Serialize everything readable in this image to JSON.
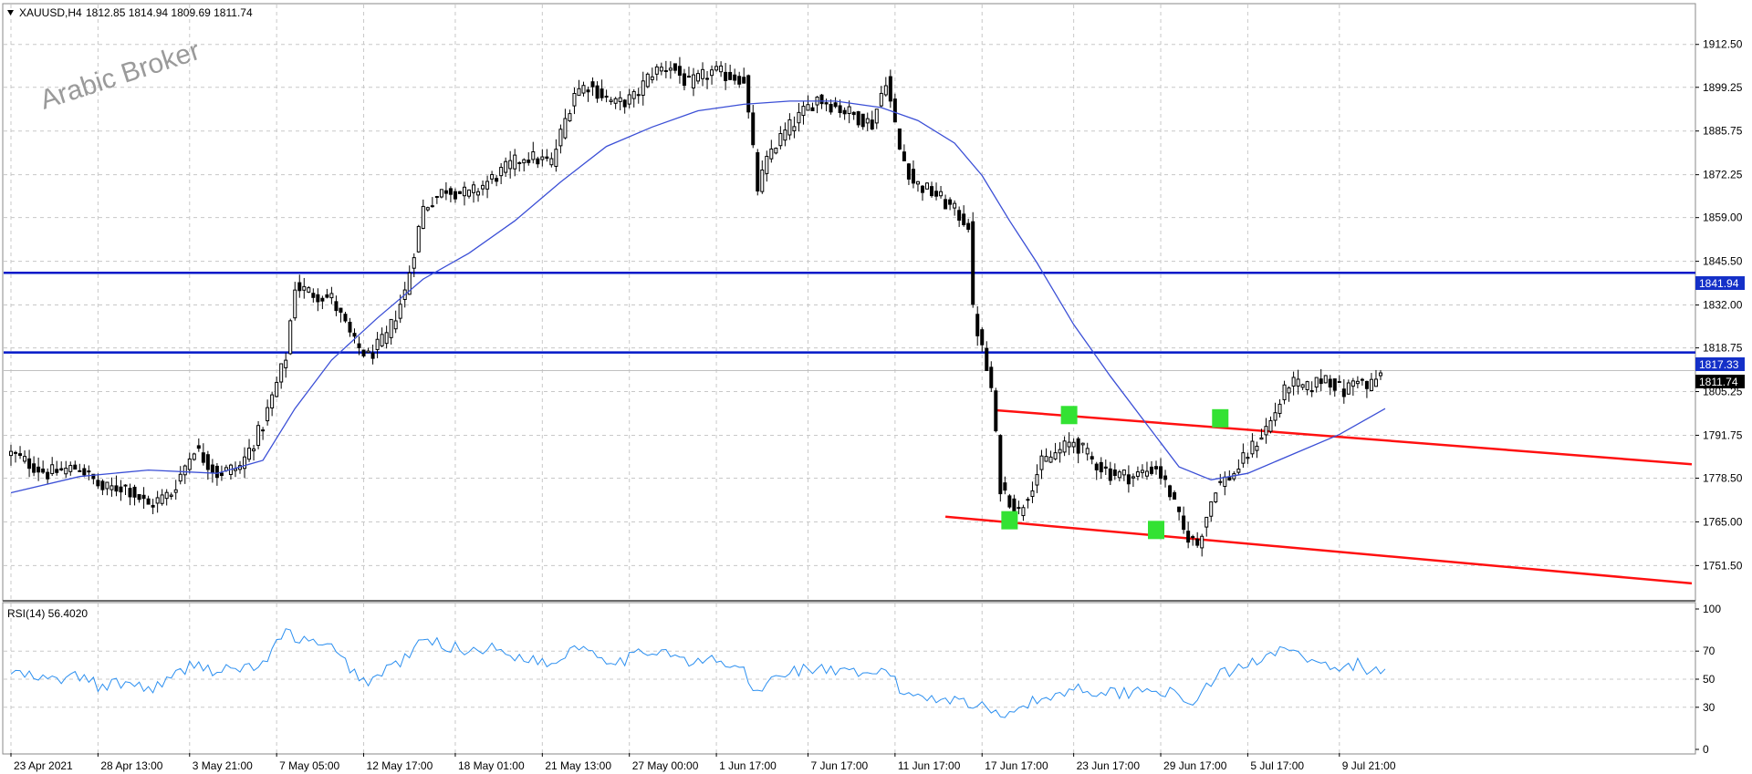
{
  "header": {
    "symbol": "XAUUSD,H4",
    "ohlc": "1812.85 1814.94 1809.69 1811.74",
    "collapse_icon": "triangle-down-icon"
  },
  "watermark": "Arabic Broker",
  "rsi_header": "RSI(14) 56.4020",
  "price_badges": {
    "upper": "1841.94",
    "lower": "1817.33",
    "current": "1811.74"
  },
  "colors": {
    "background": "#ffffff",
    "candle": "#000000",
    "moving_average": "#3b4fd6",
    "horizontal_levels": "#0018c8",
    "channel": "#ff1010",
    "markers": "#33e233",
    "rsi_line": "#2b8ff0",
    "grid": "#c8c8c8"
  },
  "chart_data": [
    {
      "type": "candlestick",
      "panel": "main",
      "ylim": [
        1744,
        1922
      ],
      "y_ticks": [
        "1912.50",
        "1899.25",
        "1885.75",
        "1872.25",
        "1859.00",
        "1845.50",
        "1832.00",
        "1818.75",
        "1805.25",
        "1791.75",
        "1778.50",
        "1765.00",
        "1751.50"
      ],
      "x_ticks": [
        "23 Apr 2021",
        "28 Apr 13:00",
        "3 May 21:00",
        "7 May 05:00",
        "12 May 17:00",
        "18 May 01:00",
        "21 May 13:00",
        "27 May 00:00",
        "1 Jun 17:00",
        "7 Jun 17:00",
        "11 Jun 17:00",
        "17 Jun 17:00",
        "23 Jun 17:00",
        "29 Jun 17:00",
        "5 Jul 17:00",
        "9 Jul 21:00"
      ],
      "grid": true,
      "price_path": [
        [
          0,
          1786
        ],
        [
          8,
          1780
        ],
        [
          15,
          1782
        ],
        [
          20,
          1775
        ],
        [
          25,
          1776
        ],
        [
          30,
          1770
        ],
        [
          35,
          1774
        ],
        [
          40,
          1788
        ],
        [
          45,
          1780
        ],
        [
          50,
          1782
        ],
        [
          55,
          1795
        ],
        [
          60,
          1816
        ],
        [
          62,
          1838
        ],
        [
          65,
          1836
        ],
        [
          70,
          1834
        ],
        [
          75,
          1820
        ],
        [
          78,
          1816
        ],
        [
          82,
          1822
        ],
        [
          86,
          1836
        ],
        [
          90,
          1862
        ],
        [
          95,
          1868
        ],
        [
          100,
          1866
        ],
        [
          104,
          1870
        ],
        [
          108,
          1874
        ],
        [
          112,
          1878
        ],
        [
          118,
          1876
        ],
        [
          123,
          1898
        ],
        [
          126,
          1900
        ],
        [
          132,
          1894
        ],
        [
          136,
          1896
        ],
        [
          140,
          1904
        ],
        [
          144,
          1906
        ],
        [
          148,
          1900
        ],
        [
          153,
          1904
        ],
        [
          160,
          1902
        ],
        [
          163,
          1868
        ],
        [
          166,
          1880
        ],
        [
          170,
          1887
        ],
        [
          176,
          1896
        ],
        [
          182,
          1892
        ],
        [
          188,
          1888
        ],
        [
          191,
          1902
        ],
        [
          194,
          1880
        ],
        [
          197,
          1870
        ],
        [
          202,
          1866
        ],
        [
          206,
          1861
        ],
        [
          209,
          1857
        ],
        [
          210,
          1830
        ],
        [
          212,
          1818
        ],
        [
          214,
          1806
        ],
        [
          216,
          1776
        ],
        [
          220,
          1768
        ],
        [
          225,
          1783
        ],
        [
          228,
          1786
        ],
        [
          232,
          1790
        ],
        [
          236,
          1784
        ],
        [
          240,
          1780
        ],
        [
          245,
          1779
        ],
        [
          250,
          1782
        ],
        [
          253,
          1774
        ],
        [
          256,
          1762
        ],
        [
          259,
          1758
        ],
        [
          263,
          1776
        ],
        [
          267,
          1780
        ],
        [
          271,
          1788
        ],
        [
          275,
          1796
        ],
        [
          279,
          1808
        ],
        [
          283,
          1806
        ],
        [
          287,
          1810
        ],
        [
          291,
          1805
        ],
        [
          294,
          1810
        ],
        [
          296,
          1806
        ],
        [
          298,
          1809
        ],
        [
          300,
          1811.74
        ]
      ],
      "bars": 300,
      "overlays": {
        "moving_average": [
          [
            0,
            1774
          ],
          [
            15,
            1779
          ],
          [
            30,
            1781
          ],
          [
            45,
            1780
          ],
          [
            55,
            1784
          ],
          [
            62,
            1800
          ],
          [
            70,
            1815
          ],
          [
            80,
            1828
          ],
          [
            90,
            1840
          ],
          [
            100,
            1848
          ],
          [
            110,
            1858
          ],
          [
            120,
            1870
          ],
          [
            130,
            1881
          ],
          [
            140,
            1887
          ],
          [
            150,
            1892
          ],
          [
            160,
            1894
          ],
          [
            170,
            1895
          ],
          [
            180,
            1895
          ],
          [
            190,
            1893
          ],
          [
            198,
            1889
          ],
          [
            206,
            1882
          ],
          [
            212,
            1872
          ],
          [
            218,
            1858
          ],
          [
            224,
            1845
          ],
          [
            232,
            1826
          ],
          [
            240,
            1810
          ],
          [
            248,
            1795
          ],
          [
            255,
            1782
          ],
          [
            262,
            1778
          ],
          [
            270,
            1780
          ],
          [
            280,
            1786
          ],
          [
            290,
            1792
          ],
          [
            300,
            1800
          ]
        ],
        "horizontal_levels": [
          1841.94,
          1817.33
        ],
        "channel_upper": [
          [
            215,
            1799.5
          ],
          [
            372,
            1782.8
          ]
        ],
        "channel_lower": [
          [
            204,
            1766.6
          ],
          [
            372,
            1746
          ]
        ],
        "markers": [
          [
            218,
            1765.5
          ],
          [
            231,
            1798
          ],
          [
            250,
            1762.5
          ],
          [
            264,
            1797
          ]
        ]
      }
    },
    {
      "type": "line",
      "panel": "rsi",
      "title": "RSI(14) 56.4020",
      "ylim": [
        0,
        100
      ],
      "y_ticks": [
        "100",
        "70",
        "50",
        "30",
        "0"
      ],
      "path": [
        [
          0,
          55
        ],
        [
          8,
          49
        ],
        [
          15,
          52
        ],
        [
          20,
          44
        ],
        [
          25,
          48
        ],
        [
          30,
          43
        ],
        [
          35,
          50
        ],
        [
          40,
          62
        ],
        [
          45,
          55
        ],
        [
          50,
          58
        ],
        [
          55,
          60
        ],
        [
          60,
          84
        ],
        [
          62,
          80
        ],
        [
          65,
          76
        ],
        [
          70,
          72
        ],
        [
          75,
          55
        ],
        [
          78,
          47
        ],
        [
          82,
          58
        ],
        [
          86,
          64
        ],
        [
          90,
          78
        ],
        [
          95,
          74
        ],
        [
          100,
          70
        ],
        [
          104,
          73
        ],
        [
          108,
          68
        ],
        [
          112,
          66
        ],
        [
          118,
          60
        ],
        [
          123,
          74
        ],
        [
          126,
          72
        ],
        [
          132,
          62
        ],
        [
          136,
          66
        ],
        [
          140,
          71
        ],
        [
          144,
          70
        ],
        [
          148,
          60
        ],
        [
          153,
          64
        ],
        [
          160,
          56
        ],
        [
          163,
          38
        ],
        [
          166,
          50
        ],
        [
          170,
          56
        ],
        [
          176,
          58
        ],
        [
          182,
          54
        ],
        [
          188,
          52
        ],
        [
          191,
          59
        ],
        [
          194,
          42
        ],
        [
          197,
          39
        ],
        [
          202,
          37
        ],
        [
          206,
          36
        ],
        [
          209,
          34
        ],
        [
          210,
          30
        ],
        [
          212,
          30
        ],
        [
          214,
          28
        ],
        [
          216,
          26
        ],
        [
          220,
          30
        ],
        [
          225,
          36
        ],
        [
          228,
          38
        ],
        [
          232,
          44
        ],
        [
          236,
          42
        ],
        [
          240,
          40
        ],
        [
          245,
          41
        ],
        [
          250,
          44
        ],
        [
          253,
          40
        ],
        [
          256,
          33
        ],
        [
          259,
          36
        ],
        [
          263,
          52
        ],
        [
          267,
          56
        ],
        [
          271,
          62
        ],
        [
          275,
          70
        ],
        [
          279,
          74
        ],
        [
          283,
          62
        ],
        [
          287,
          58
        ],
        [
          291,
          56
        ],
        [
          294,
          62
        ],
        [
          296,
          52
        ],
        [
          298,
          56
        ],
        [
          300,
          56.4
        ]
      ]
    }
  ]
}
